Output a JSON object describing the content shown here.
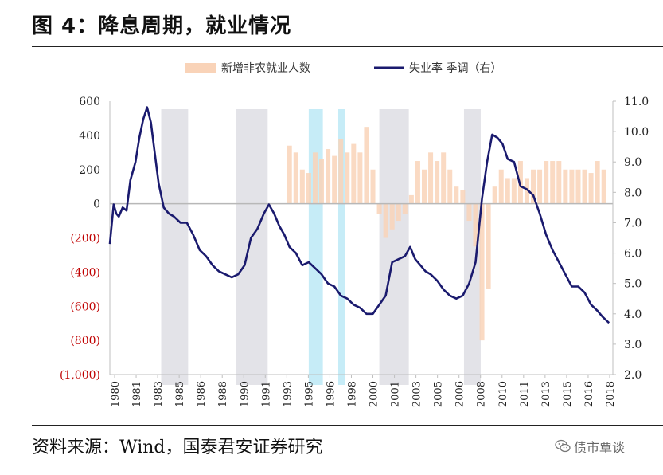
{
  "header": {
    "title": "图 4：降息周期，就业情况"
  },
  "footer": {
    "source": "资料来源：Wind，国泰君安证券研究",
    "watermark_text": "债市覃谈",
    "watermark_icon": "wechat-icon"
  },
  "colors": {
    "bars": "#f9d3b8",
    "line": "#1a1a6e",
    "line_soft": "#6f6fbd",
    "shade_gray": "#e3e3e8",
    "shade_cyan": "#c6ecf7",
    "left_neg_tick": "#c00000"
  },
  "chart_data": {
    "type": "bar+line",
    "legend": {
      "bars": "新增非农就业人数",
      "line": "失业率 季调（右）",
      "position": "top-center"
    },
    "x_tick_labels": [
      "1980",
      "1981",
      "1983",
      "1985",
      "1986",
      "1988",
      "1990",
      "1991",
      "1993",
      "1995",
      "1996",
      "1998",
      "2000",
      "2001",
      "2003",
      "2005",
      "2006",
      "2008",
      "2010",
      "2011",
      "2013",
      "2015",
      "2016",
      "2018"
    ],
    "y_left": {
      "ylim": [
        -1000,
        600
      ],
      "ticks": [
        600,
        400,
        200,
        0,
        -200,
        -400,
        -600,
        -800,
        -1000
      ],
      "tick_labels": [
        "600",
        "400",
        "200",
        "0",
        "(200)",
        "(400)",
        "(600)",
        "(800)",
        "(1,000)"
      ]
    },
    "y_right": {
      "ylim": [
        2.0,
        11.0
      ],
      "ticks": [
        11.0,
        10.0,
        9.0,
        8.0,
        7.0,
        6.0,
        5.0,
        4.0,
        3.0,
        2.0
      ],
      "tick_labels": [
        "11.0",
        "10.0",
        "9.0",
        "8.0",
        "7.0",
        "6.0",
        "5.0",
        "4.0",
        "3.0",
        "2.0"
      ]
    },
    "shaded_periods": [
      {
        "start": 1984.0,
        "end": 1986.1,
        "color": "gray"
      },
      {
        "start": 1989.8,
        "end": 1992.3,
        "color": "gray"
      },
      {
        "start": 1995.5,
        "end": 1996.6,
        "color": "cyan"
      },
      {
        "start": 1997.8,
        "end": 1998.3,
        "color": "cyan"
      },
      {
        "start": 2001.0,
        "end": 2003.3,
        "color": "gray"
      },
      {
        "start": 2007.6,
        "end": 2008.9,
        "color": "gray"
      }
    ],
    "unemployment_rate": {
      "x": [
        1980.0,
        1980.3,
        1980.5,
        1980.7,
        1981.0,
        1981.3,
        1981.6,
        1982.0,
        1982.3,
        1982.6,
        1982.9,
        1983.2,
        1983.5,
        1983.8,
        1984.2,
        1984.6,
        1985.0,
        1985.5,
        1986.0,
        1986.5,
        1987.0,
        1987.5,
        1988.0,
        1988.5,
        1989.0,
        1989.5,
        1990.0,
        1990.5,
        1991.0,
        1991.5,
        1992.0,
        1992.4,
        1992.8,
        1993.2,
        1993.6,
        1994.0,
        1994.5,
        1995.0,
        1995.5,
        1996.0,
        1996.5,
        1997.0,
        1997.5,
        1998.0,
        1998.5,
        1999.0,
        1999.5,
        2000.0,
        2000.5,
        2001.0,
        2001.5,
        2002.0,
        2002.5,
        2003.0,
        2003.4,
        2003.8,
        2004.2,
        2004.6,
        2005.0,
        2005.5,
        2006.0,
        2006.5,
        2007.0,
        2007.5,
        2008.0,
        2008.5,
        2009.0,
        2009.4,
        2009.8,
        2010.2,
        2010.6,
        2011.0,
        2011.5,
        2012.0,
        2012.5,
        2013.0,
        2013.5,
        2014.0,
        2014.5,
        2015.0,
        2015.5,
        2016.0,
        2016.5,
        2017.0,
        2017.5,
        2018.0,
        2018.4,
        2018.9
      ],
      "y": [
        6.3,
        7.6,
        7.3,
        7.2,
        7.5,
        7.4,
        8.4,
        9.0,
        9.8,
        10.4,
        10.8,
        10.3,
        9.3,
        8.3,
        7.5,
        7.3,
        7.2,
        7.0,
        7.0,
        6.6,
        6.1,
        5.9,
        5.6,
        5.4,
        5.3,
        5.2,
        5.3,
        5.6,
        6.5,
        6.8,
        7.3,
        7.6,
        7.3,
        6.9,
        6.6,
        6.2,
        6.0,
        5.6,
        5.7,
        5.5,
        5.3,
        5.0,
        4.9,
        4.6,
        4.5,
        4.3,
        4.2,
        4.0,
        4.0,
        4.3,
        4.6,
        5.7,
        5.8,
        5.9,
        6.2,
        5.8,
        5.6,
        5.4,
        5.3,
        5.1,
        4.8,
        4.6,
        4.5,
        4.6,
        5.0,
        5.7,
        7.8,
        9.0,
        9.9,
        9.8,
        9.6,
        9.1,
        9.0,
        8.2,
        8.1,
        7.9,
        7.3,
        6.6,
        6.1,
        5.7,
        5.3,
        4.9,
        4.9,
        4.7,
        4.3,
        4.1,
        3.9,
        3.7
      ]
    },
    "nonfarm_payroll_change": {
      "x": [
        1994.0,
        1994.5,
        1995.0,
        1995.5,
        1996.0,
        1996.5,
        1997.0,
        1997.5,
        1998.0,
        1998.5,
        1999.0,
        1999.5,
        2000.0,
        2000.5,
        2001.0,
        2001.5,
        2002.0,
        2002.5,
        2003.0,
        2003.5,
        2004.0,
        2004.5,
        2005.0,
        2005.5,
        2006.0,
        2006.5,
        2007.0,
        2007.5,
        2008.0,
        2008.5,
        2009.0,
        2009.5,
        2010.0,
        2010.5,
        2011.0,
        2011.5,
        2012.0,
        2012.5,
        2013.0,
        2013.5,
        2014.0,
        2014.5,
        2015.0,
        2015.5,
        2016.0,
        2016.5,
        2017.0,
        2017.5,
        2018.0,
        2018.5
      ],
      "y": [
        340,
        300,
        200,
        180,
        300,
        260,
        320,
        280,
        380,
        300,
        350,
        300,
        450,
        200,
        -60,
        -200,
        -150,
        -100,
        -60,
        50,
        250,
        200,
        300,
        250,
        300,
        200,
        100,
        80,
        -100,
        -250,
        -800,
        -500,
        100,
        200,
        150,
        150,
        250,
        150,
        200,
        200,
        250,
        250,
        250,
        200,
        200,
        200,
        200,
        180,
        250,
        200
      ]
    }
  }
}
